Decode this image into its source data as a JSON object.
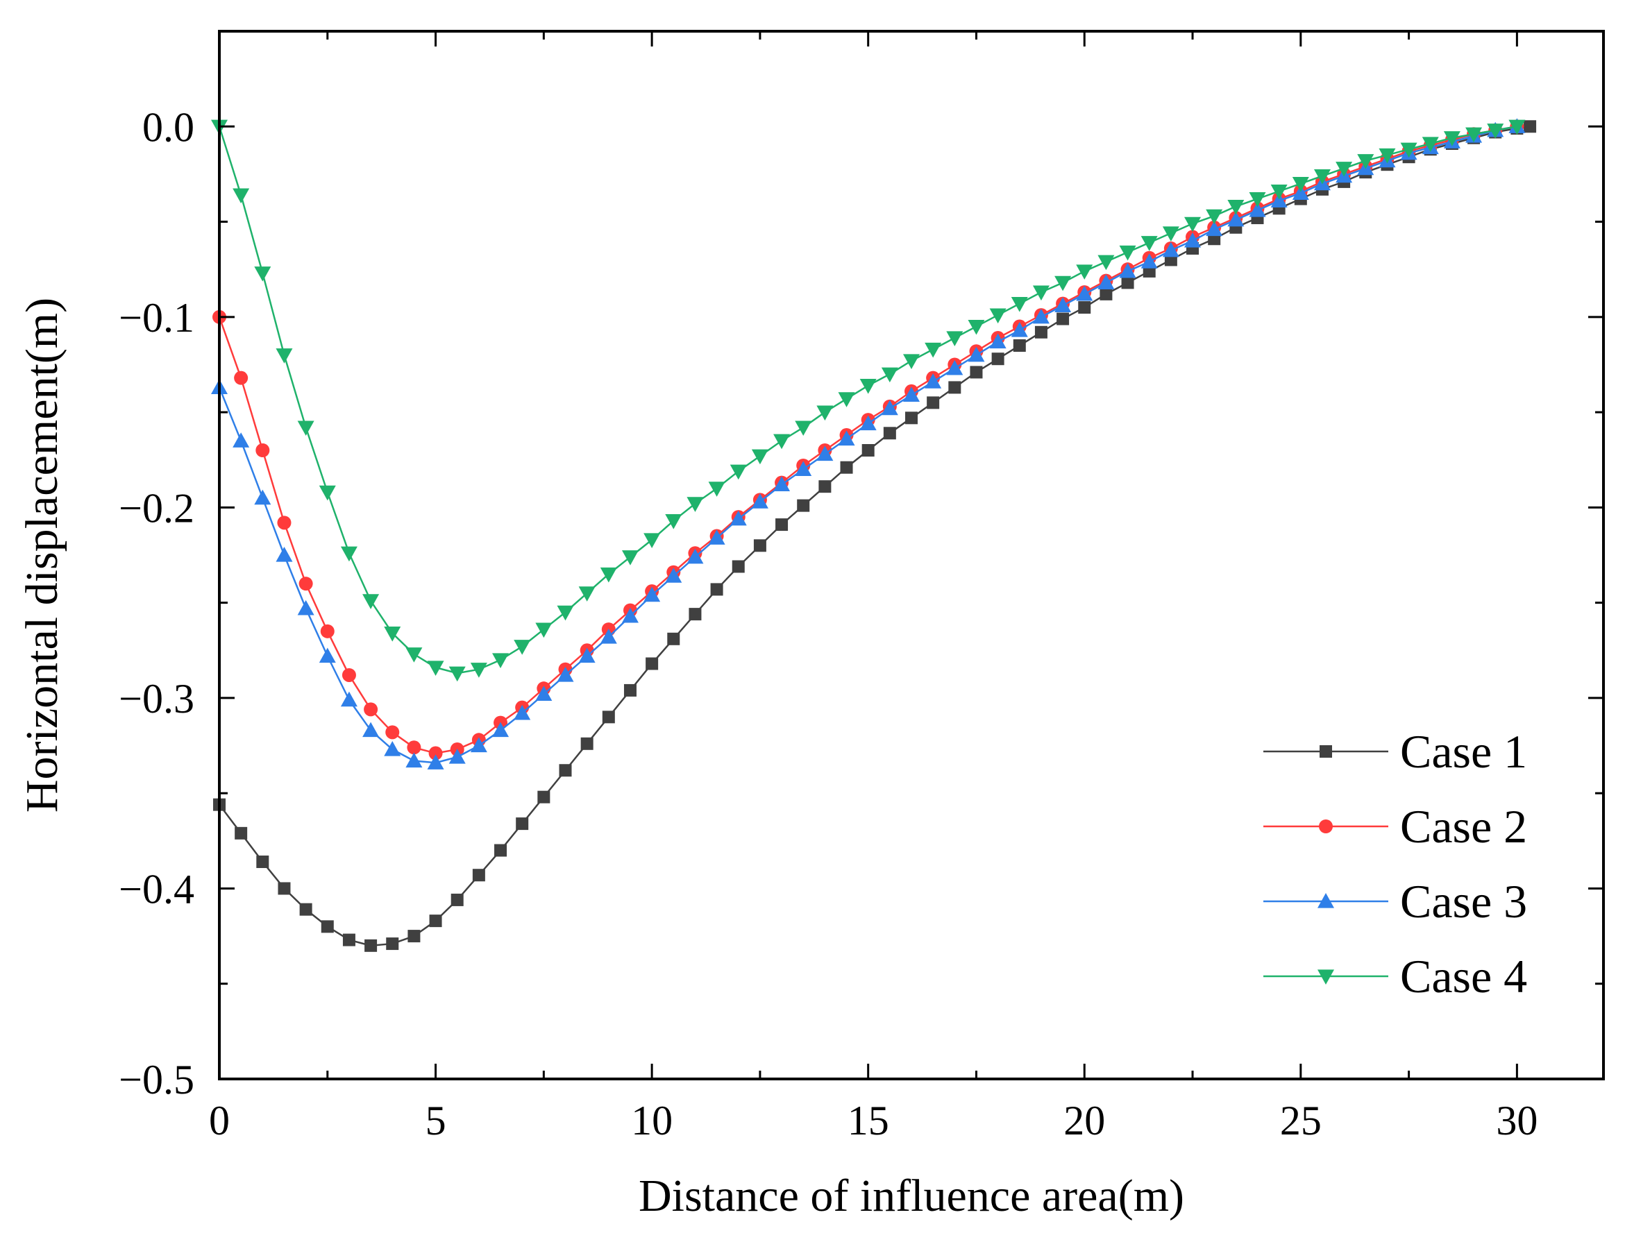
{
  "chart_data": {
    "type": "line",
    "title": "",
    "xlabel": "Distance of influence area(m)",
    "ylabel": "Horizontal displacement(m)",
    "xlim": [
      0,
      32
    ],
    "ylim": [
      -0.5,
      0.05
    ],
    "xticks": [
      0,
      5,
      10,
      15,
      20,
      25,
      30
    ],
    "xtick_labels": [
      "0",
      "5",
      "10",
      "15",
      "20",
      "25",
      "30"
    ],
    "yticks": [
      0.0,
      -0.1,
      -0.2,
      -0.3,
      -0.4,
      -0.5
    ],
    "ytick_labels": [
      "0.0",
      "−0.1",
      "−0.2",
      "−0.3",
      "−0.4",
      "−0.5"
    ],
    "grid": false,
    "legend_position": "bottom-right",
    "series": [
      {
        "name": "Case 1",
        "color": "#404040",
        "marker": "square",
        "x": [
          0,
          0.5,
          1,
          1.5,
          2,
          2.5,
          3,
          3.5,
          4,
          4.5,
          5,
          5.5,
          6,
          6.5,
          7,
          7.5,
          8,
          8.5,
          9,
          9.5,
          10,
          10.5,
          11,
          11.5,
          12,
          12.5,
          13,
          13.5,
          14,
          14.5,
          15,
          15.5,
          16,
          16.5,
          17,
          17.5,
          18,
          18.5,
          19,
          19.5,
          20,
          20.5,
          21,
          21.5,
          22,
          22.5,
          23,
          23.5,
          24,
          24.5,
          25,
          25.5,
          26,
          26.5,
          27,
          27.5,
          28,
          28.5,
          29,
          29.5,
          30,
          30.3
        ],
        "y": [
          -0.356,
          -0.371,
          -0.386,
          -0.4,
          -0.411,
          -0.42,
          -0.427,
          -0.43,
          -0.429,
          -0.425,
          -0.417,
          -0.406,
          -0.393,
          -0.38,
          -0.366,
          -0.352,
          -0.338,
          -0.324,
          -0.31,
          -0.296,
          -0.282,
          -0.269,
          -0.256,
          -0.243,
          -0.231,
          -0.22,
          -0.209,
          -0.199,
          -0.189,
          -0.179,
          -0.17,
          -0.161,
          -0.153,
          -0.145,
          -0.137,
          -0.129,
          -0.122,
          -0.115,
          -0.108,
          -0.101,
          -0.095,
          -0.088,
          -0.082,
          -0.076,
          -0.07,
          -0.064,
          -0.059,
          -0.053,
          -0.048,
          -0.043,
          -0.038,
          -0.033,
          -0.029,
          -0.024,
          -0.02,
          -0.016,
          -0.012,
          -0.009,
          -0.006,
          -0.003,
          -0.001,
          0.0
        ]
      },
      {
        "name": "Case 2",
        "color": "#ff3b3b",
        "marker": "circle",
        "x": [
          0,
          0.5,
          1,
          1.5,
          2,
          2.5,
          3,
          3.5,
          4,
          4.5,
          5,
          5.5,
          6,
          6.5,
          7,
          7.5,
          8,
          8.5,
          9,
          9.5,
          10,
          10.5,
          11,
          11.5,
          12,
          12.5,
          13,
          13.5,
          14,
          14.5,
          15,
          15.5,
          16,
          16.5,
          17,
          17.5,
          18,
          18.5,
          19,
          19.5,
          20,
          20.5,
          21,
          21.5,
          22,
          22.5,
          23,
          23.5,
          24,
          24.5,
          25,
          25.5,
          26,
          26.5,
          27,
          27.5,
          28,
          28.5,
          29,
          29.5,
          30
        ],
        "y": [
          -0.1,
          -0.132,
          -0.17,
          -0.208,
          -0.24,
          -0.265,
          -0.288,
          -0.306,
          -0.318,
          -0.326,
          -0.329,
          -0.327,
          -0.322,
          -0.313,
          -0.305,
          -0.295,
          -0.285,
          -0.275,
          -0.264,
          -0.254,
          -0.244,
          -0.234,
          -0.224,
          -0.215,
          -0.205,
          -0.196,
          -0.187,
          -0.178,
          -0.17,
          -0.162,
          -0.154,
          -0.147,
          -0.139,
          -0.132,
          -0.125,
          -0.118,
          -0.111,
          -0.105,
          -0.099,
          -0.093,
          -0.087,
          -0.081,
          -0.075,
          -0.069,
          -0.064,
          -0.058,
          -0.053,
          -0.048,
          -0.043,
          -0.038,
          -0.034,
          -0.029,
          -0.025,
          -0.021,
          -0.017,
          -0.013,
          -0.01,
          -0.007,
          -0.004,
          -0.002,
          0.0
        ]
      },
      {
        "name": "Case 3",
        "color": "#2f7fe8",
        "marker": "triangle-up",
        "x": [
          0,
          0.5,
          1,
          1.5,
          2,
          2.5,
          3,
          3.5,
          4,
          4.5,
          5,
          5.5,
          6,
          6.5,
          7,
          7.5,
          8,
          8.5,
          9,
          9.5,
          10,
          10.5,
          11,
          11.5,
          12,
          12.5,
          13,
          13.5,
          14,
          14.5,
          15,
          15.5,
          16,
          16.5,
          17,
          17.5,
          18,
          18.5,
          19,
          19.5,
          20,
          20.5,
          21,
          21.5,
          22,
          22.5,
          23,
          23.5,
          24,
          24.5,
          25,
          25.5,
          26,
          26.5,
          27,
          27.5,
          28,
          28.5,
          29,
          29.5,
          30
        ],
        "y": [
          -0.137,
          -0.165,
          -0.195,
          -0.225,
          -0.253,
          -0.278,
          -0.301,
          -0.317,
          -0.327,
          -0.333,
          -0.334,
          -0.331,
          -0.325,
          -0.317,
          -0.308,
          -0.298,
          -0.288,
          -0.278,
          -0.268,
          -0.257,
          -0.246,
          -0.236,
          -0.226,
          -0.216,
          -0.206,
          -0.197,
          -0.188,
          -0.18,
          -0.172,
          -0.164,
          -0.156,
          -0.148,
          -0.141,
          -0.134,
          -0.127,
          -0.12,
          -0.113,
          -0.107,
          -0.1,
          -0.094,
          -0.088,
          -0.082,
          -0.076,
          -0.071,
          -0.065,
          -0.06,
          -0.054,
          -0.049,
          -0.044,
          -0.039,
          -0.035,
          -0.03,
          -0.026,
          -0.022,
          -0.018,
          -0.014,
          -0.011,
          -0.008,
          -0.005,
          -0.002,
          0.0
        ]
      },
      {
        "name": "Case 4",
        "color": "#1fb26b",
        "marker": "triangle-down",
        "x": [
          0,
          0.5,
          1,
          1.5,
          2,
          2.5,
          3,
          3.5,
          4,
          4.5,
          5,
          5.5,
          6,
          6.5,
          7,
          7.5,
          8,
          8.5,
          9,
          9.5,
          10,
          10.5,
          11,
          11.5,
          12,
          12.5,
          13,
          13.5,
          14,
          14.5,
          15,
          15.5,
          16,
          16.5,
          17,
          17.5,
          18,
          18.5,
          19,
          19.5,
          20,
          20.5,
          21,
          21.5,
          22,
          22.5,
          23,
          23.5,
          24,
          24.5,
          25,
          25.5,
          26,
          26.5,
          27,
          27.5,
          28,
          28.5,
          29,
          29.5,
          30
        ],
        "y": [
          0.0,
          -0.036,
          -0.077,
          -0.12,
          -0.158,
          -0.192,
          -0.224,
          -0.249,
          -0.266,
          -0.277,
          -0.284,
          -0.287,
          -0.285,
          -0.28,
          -0.273,
          -0.264,
          -0.255,
          -0.245,
          -0.235,
          -0.226,
          -0.217,
          -0.207,
          -0.198,
          -0.19,
          -0.181,
          -0.173,
          -0.165,
          -0.158,
          -0.15,
          -0.143,
          -0.136,
          -0.13,
          -0.123,
          -0.117,
          -0.111,
          -0.105,
          -0.099,
          -0.093,
          -0.087,
          -0.082,
          -0.076,
          -0.071,
          -0.066,
          -0.061,
          -0.056,
          -0.051,
          -0.047,
          -0.042,
          -0.038,
          -0.034,
          -0.03,
          -0.026,
          -0.022,
          -0.018,
          -0.015,
          -0.012,
          -0.009,
          -0.006,
          -0.004,
          -0.002,
          0.0
        ]
      }
    ]
  }
}
